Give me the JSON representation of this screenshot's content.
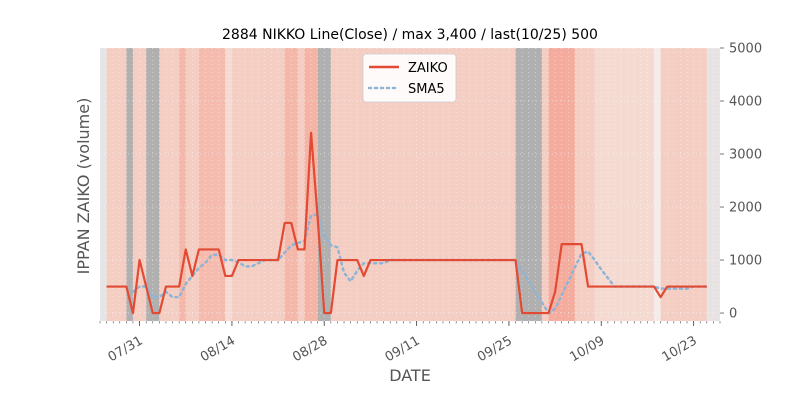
{
  "chart_data": {
    "type": "line",
    "title": "2884 NIKKO Line(Close) / max 3,400 / last(10/25) 500",
    "xlabel": "DATE",
    "ylabel": "IPPAN ZAIKO (volume)",
    "ylim": [
      -150,
      5000
    ],
    "yticks": [
      0,
      1000,
      2000,
      3000,
      4000,
      5000
    ],
    "ytick_labels": [
      "0",
      "1000",
      "2000",
      "3000",
      "4000",
      "5000"
    ],
    "xlim": [
      "07/25",
      "10/27"
    ],
    "xticks": [
      "07/31",
      "08/14",
      "08/28",
      "09/11",
      "09/25",
      "10/09",
      "10/23"
    ],
    "legend_position": "upper center",
    "grid": true,
    "series": [
      {
        "name": "ZAIKO",
        "color": "#e24a33",
        "style": "solid",
        "points": [
          [
            "07/26",
            500
          ],
          [
            "07/27",
            500
          ],
          [
            "07/28",
            500
          ],
          [
            "07/29",
            500
          ],
          [
            "07/30",
            0
          ],
          [
            "07/31",
            1000
          ],
          [
            "08/01",
            500
          ],
          [
            "08/02",
            0
          ],
          [
            "08/03",
            0
          ],
          [
            "08/04",
            500
          ],
          [
            "08/05",
            500
          ],
          [
            "08/06",
            500
          ],
          [
            "08/07",
            1200
          ],
          [
            "08/08",
            700
          ],
          [
            "08/09",
            1200
          ],
          [
            "08/10",
            1200
          ],
          [
            "08/11",
            1200
          ],
          [
            "08/12",
            1200
          ],
          [
            "08/13",
            700
          ],
          [
            "08/14",
            700
          ],
          [
            "08/15",
            1000
          ],
          [
            "08/16",
            1000
          ],
          [
            "08/17",
            1000
          ],
          [
            "08/18",
            1000
          ],
          [
            "08/19",
            1000
          ],
          [
            "08/20",
            1000
          ],
          [
            "08/21",
            1000
          ],
          [
            "08/22",
            1700
          ],
          [
            "08/23",
            1700
          ],
          [
            "08/24",
            1200
          ],
          [
            "08/25",
            1200
          ],
          [
            "08/26",
            3400
          ],
          [
            "08/27",
            1800
          ],
          [
            "08/28",
            0
          ],
          [
            "08/29",
            0
          ],
          [
            "08/30",
            1000
          ],
          [
            "08/31",
            1000
          ],
          [
            "09/01",
            1000
          ],
          [
            "09/02",
            1000
          ],
          [
            "09/03",
            700
          ],
          [
            "09/04",
            1000
          ],
          [
            "09/05",
            1000
          ],
          [
            "09/06",
            1000
          ],
          [
            "09/07",
            1000
          ],
          [
            "09/08",
            1000
          ],
          [
            "09/09",
            1000
          ],
          [
            "09/10",
            1000
          ],
          [
            "09/11",
            1000
          ],
          [
            "09/12",
            1000
          ],
          [
            "09/13",
            1000
          ],
          [
            "09/14",
            1000
          ],
          [
            "09/15",
            1000
          ],
          [
            "09/16",
            1000
          ],
          [
            "09/17",
            1000
          ],
          [
            "09/18",
            1000
          ],
          [
            "09/19",
            1000
          ],
          [
            "09/20",
            1000
          ],
          [
            "09/21",
            1000
          ],
          [
            "09/22",
            1000
          ],
          [
            "09/23",
            1000
          ],
          [
            "09/24",
            1000
          ],
          [
            "09/25",
            1000
          ],
          [
            "09/26",
            1000
          ],
          [
            "09/27",
            0
          ],
          [
            "09/28",
            0
          ],
          [
            "09/29",
            0
          ],
          [
            "09/30",
            0
          ],
          [
            "10/01",
            0
          ],
          [
            "10/02",
            400
          ],
          [
            "10/03",
            1300
          ],
          [
            "10/04",
            1300
          ],
          [
            "10/05",
            1300
          ],
          [
            "10/06",
            1300
          ],
          [
            "10/07",
            500
          ],
          [
            "10/08",
            500
          ],
          [
            "10/09",
            500
          ],
          [
            "10/10",
            500
          ],
          [
            "10/11",
            500
          ],
          [
            "10/12",
            500
          ],
          [
            "10/13",
            500
          ],
          [
            "10/14",
            500
          ],
          [
            "10/15",
            500
          ],
          [
            "10/16",
            500
          ],
          [
            "10/17",
            500
          ],
          [
            "10/18",
            300
          ],
          [
            "10/19",
            500
          ],
          [
            "10/20",
            500
          ],
          [
            "10/21",
            500
          ],
          [
            "10/22",
            500
          ],
          [
            "10/23",
            500
          ],
          [
            "10/24",
            500
          ],
          [
            "10/25",
            500
          ]
        ]
      },
      {
        "name": "SMA5",
        "color": "#8eb4d6",
        "style": "dotted",
        "points": [
          [
            "07/30",
            400
          ],
          [
            "07/31",
            500
          ],
          [
            "08/01",
            500
          ],
          [
            "08/02",
            300
          ],
          [
            "08/03",
            300
          ],
          [
            "08/04",
            400
          ],
          [
            "08/05",
            300
          ],
          [
            "08/06",
            300
          ],
          [
            "08/07",
            550
          ],
          [
            "08/08",
            700
          ],
          [
            "08/09",
            850
          ],
          [
            "08/10",
            950
          ],
          [
            "08/11",
            1100
          ],
          [
            "08/12",
            1100
          ],
          [
            "08/13",
            1000
          ],
          [
            "08/14",
            1000
          ],
          [
            "08/15",
            960
          ],
          [
            "08/16",
            880
          ],
          [
            "08/17",
            880
          ],
          [
            "08/18",
            940
          ],
          [
            "08/19",
            1000
          ],
          [
            "08/20",
            1000
          ],
          [
            "08/21",
            1000
          ],
          [
            "08/22",
            1140
          ],
          [
            "08/23",
            1280
          ],
          [
            "08/24",
            1320
          ],
          [
            "08/25",
            1360
          ],
          [
            "08/26",
            1840
          ],
          [
            "08/27",
            1860
          ],
          [
            "08/28",
            1460
          ],
          [
            "08/29",
            1280
          ],
          [
            "08/30",
            1240
          ],
          [
            "08/31",
            760
          ],
          [
            "09/01",
            600
          ],
          [
            "09/02",
            800
          ],
          [
            "09/03",
            940
          ],
          [
            "09/04",
            940
          ],
          [
            "09/05",
            940
          ],
          [
            "09/06",
            940
          ],
          [
            "09/07",
            1000
          ],
          [
            "09/08",
            1000
          ],
          [
            "09/09",
            1000
          ],
          [
            "09/10",
            1000
          ],
          [
            "09/11",
            1000
          ],
          [
            "09/12",
            1000
          ],
          [
            "09/13",
            1000
          ],
          [
            "09/14",
            1000
          ],
          [
            "09/15",
            1000
          ],
          [
            "09/16",
            1000
          ],
          [
            "09/17",
            1000
          ],
          [
            "09/18",
            1000
          ],
          [
            "09/19",
            1000
          ],
          [
            "09/20",
            1000
          ],
          [
            "09/21",
            1000
          ],
          [
            "09/22",
            1000
          ],
          [
            "09/23",
            1000
          ],
          [
            "09/24",
            1000
          ],
          [
            "09/25",
            1000
          ],
          [
            "09/26",
            1000
          ],
          [
            "09/27",
            800
          ],
          [
            "09/28",
            600
          ],
          [
            "09/29",
            400
          ],
          [
            "09/30",
            200
          ],
          [
            "10/01",
            0
          ],
          [
            "10/02",
            80
          ],
          [
            "10/03",
            340
          ],
          [
            "10/04",
            600
          ],
          [
            "10/05",
            860
          ],
          [
            "10/06",
            1120
          ],
          [
            "10/07",
            1160
          ],
          [
            "10/08",
            1000
          ],
          [
            "10/09",
            820
          ],
          [
            "10/10",
            660
          ],
          [
            "10/11",
            500
          ],
          [
            "10/12",
            500
          ],
          [
            "10/13",
            500
          ],
          [
            "10/14",
            500
          ],
          [
            "10/15",
            500
          ],
          [
            "10/16",
            500
          ],
          [
            "10/17",
            500
          ],
          [
            "10/18",
            460
          ],
          [
            "10/19",
            460
          ],
          [
            "10/20",
            460
          ],
          [
            "10/21",
            460
          ],
          [
            "10/22",
            460
          ],
          [
            "10/23",
            500
          ],
          [
            "10/24",
            500
          ],
          [
            "10/25",
            500
          ]
        ]
      }
    ],
    "background_bands": [
      {
        "start": "07/25",
        "end": "10/27",
        "color": "#f2c4b8",
        "opacity": 0.85
      },
      {
        "start": "07/25",
        "end": "07/26",
        "color": "#e5e5e5",
        "opacity": 1
      },
      {
        "start": "07/29",
        "end": "07/30",
        "color": "#b0b0b0",
        "opacity": 1
      },
      {
        "start": "08/01",
        "end": "08/03",
        "color": "#b0b0b0",
        "opacity": 1
      },
      {
        "start": "08/06",
        "end": "08/07",
        "color": "#f4a99a",
        "opacity": 0.6
      },
      {
        "start": "08/09",
        "end": "08/13",
        "color": "#f4a99a",
        "opacity": 0.5
      },
      {
        "start": "08/13",
        "end": "08/14",
        "color": "#f5ddd6",
        "opacity": 0.9
      },
      {
        "start": "08/22",
        "end": "08/24",
        "color": "#f4a99a",
        "opacity": 0.6
      },
      {
        "start": "08/25",
        "end": "08/27",
        "color": "#f4a99a",
        "opacity": 0.7
      },
      {
        "start": "08/27",
        "end": "08/29",
        "color": "#b0b0b0",
        "opacity": 1
      },
      {
        "start": "09/26",
        "end": "09/30",
        "color": "#b0b0b0",
        "opacity": 1
      },
      {
        "start": "10/01",
        "end": "10/05",
        "color": "#f4a99a",
        "opacity": 0.9
      },
      {
        "start": "10/08",
        "end": "10/17",
        "color": "#f5ddd6",
        "opacity": 0.8
      },
      {
        "start": "10/17",
        "end": "10/18",
        "color": "#f5ece8",
        "opacity": 1
      },
      {
        "start": "10/25",
        "end": "10/27",
        "color": "#e5e5e5",
        "opacity": 0.9
      }
    ]
  }
}
